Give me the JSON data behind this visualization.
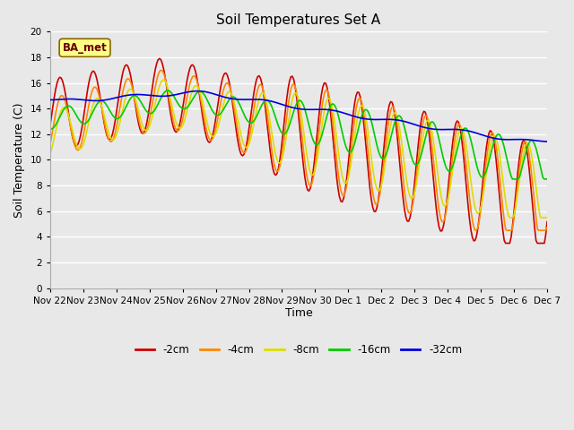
{
  "title": "Soil Temperatures Set A",
  "xlabel": "Time",
  "ylabel": "Soil Temperature (C)",
  "ylim": [
    0,
    20
  ],
  "yticks": [
    0,
    2,
    4,
    6,
    8,
    10,
    12,
    14,
    16,
    18,
    20
  ],
  "xtick_labels": [
    "Nov 22",
    "Nov 23",
    "Nov 24",
    "Nov 25",
    "Nov 26",
    "Nov 27",
    "Nov 28",
    "Nov 29",
    "Nov 30",
    "Dec 1",
    "Dec 2",
    "Dec 3",
    "Dec 4",
    "Dec 5",
    "Dec 6",
    "Dec 7"
  ],
  "series_colors": {
    "-2cm": "#cc0000",
    "-4cm": "#ff8800",
    "-8cm": "#dddd00",
    "-16cm": "#00cc00",
    "-32cm": "#0000dd"
  },
  "legend_labels": [
    "-2cm",
    "-4cm",
    "-8cm",
    "-16cm",
    "-32cm"
  ],
  "annotation_text": "BA_met",
  "bg_color": "#e8e8e8",
  "plot_bg_color": "#e8e8e8",
  "grid_color": "#ffffff",
  "title_fontsize": 11,
  "label_fontsize": 9,
  "tick_fontsize": 7.5,
  "line_width": 1.2
}
